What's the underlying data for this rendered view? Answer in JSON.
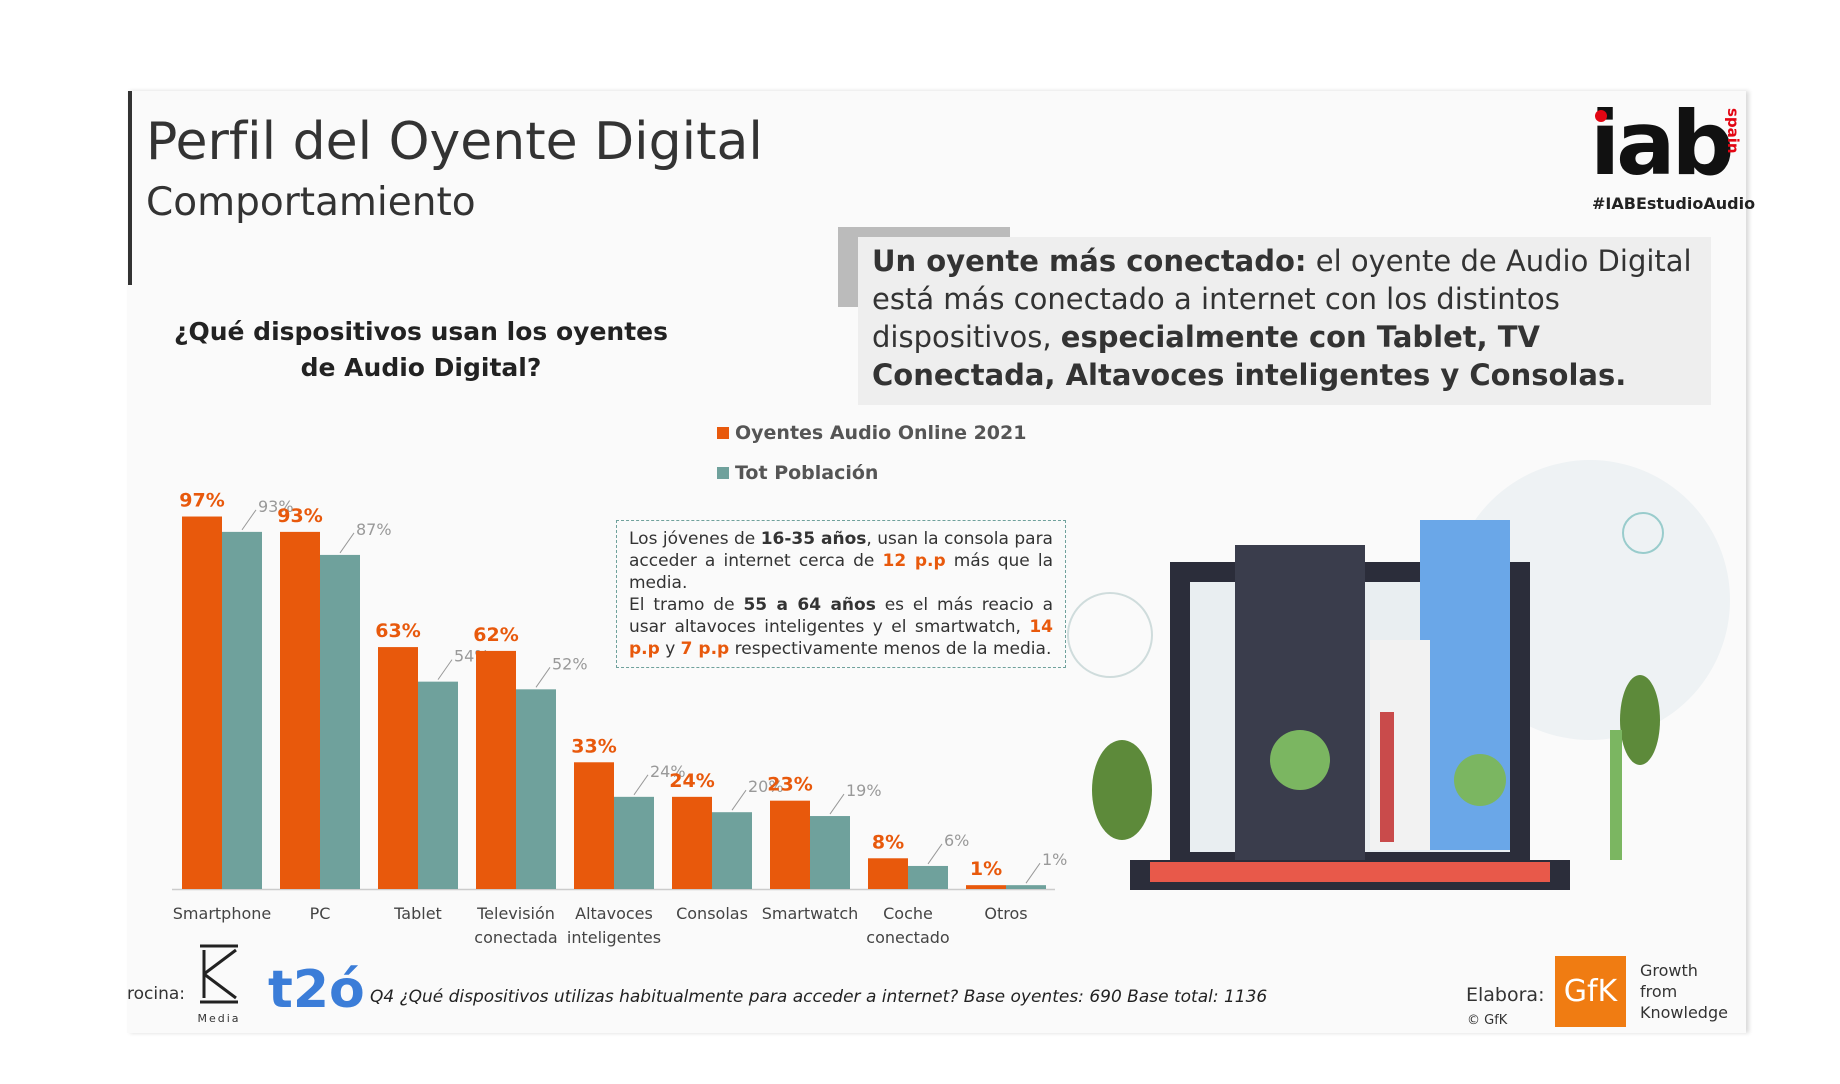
{
  "header": {
    "title": "Perfil del Oyente Digital",
    "subtitle": "Comportamiento",
    "logo": "iab",
    "logo_side": "spain",
    "hashtag": "#IABEstudioAudio"
  },
  "callout": [
    "Un oyente más conectado:",
    " el oyente de Audio Digital está más conectado a internet con los distintos dispositivos, ",
    "especialmente con Tablet, TV Conectada, Altavoces inteligentes y Consolas."
  ],
  "chart_data": {
    "type": "bar",
    "title": "¿Qué dispositivos usan los oyentes de Audio Digital?",
    "categories": [
      "Smartphone",
      "PC",
      "Tablet",
      "Televisión conectada",
      "Altavoces inteligentes",
      "Consolas",
      "Smartwatch",
      "Coche conectado",
      "Otros"
    ],
    "series": [
      {
        "name": "Oyentes Audio Online 2021",
        "color": "#e8590c",
        "values": [
          97,
          93,
          63,
          62,
          33,
          24,
          23,
          8,
          1
        ],
        "value_labels": [
          "97%",
          "93%",
          "63%",
          "62%",
          "33%",
          "24%",
          "23%",
          "8%",
          "1%"
        ]
      },
      {
        "name": "Tot Población",
        "color": "#6fa19c",
        "values": [
          93,
          87,
          54,
          52,
          24,
          20,
          19,
          6,
          1
        ],
        "value_labels": [
          "93%",
          "87%",
          "54%",
          "52%",
          "24%",
          "20%",
          "19%",
          "6%",
          "1%"
        ]
      }
    ]
  },
  "annotation": [
    [
      "Los jóvenes de ",
      "16-35 años",
      ", usan la consola para acceder a internet cerca de ",
      "12 p.p",
      " más que la media."
    ],
    [
      "El tramo de ",
      "55 a 64 años",
      " es el más reacio a usar altavoces inteligentes y el smartwatch, ",
      "14 p.p",
      " y ",
      "7 p.p",
      " respectivamente menos de la media."
    ]
  ],
  "footer": {
    "sponsor_label": "rocina:",
    "sponsor_1": "Media",
    "sponsor_2": "t2ó",
    "note": "Q4 ¿Qué dispositivos utilizas habitualmente para acceder a internet?  Base oyentes: 690 Base total: 1136",
    "made_by": "Elabora:",
    "copyright": "© GfK",
    "gfk": "GfK",
    "gfk_tagline": "Growth from Knowledge"
  }
}
